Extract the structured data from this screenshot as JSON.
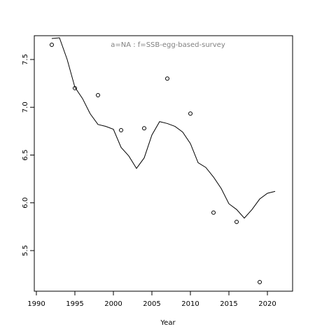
{
  "chart_data": {
    "type": "line",
    "x_label": "Year",
    "annotation": "a=NA  :  f=SSB-egg-based-survey",
    "xlim": [
      1989.73,
      2023.27
    ],
    "ylim": [
      5.075,
      7.749
    ],
    "xticks": [
      1990,
      1995,
      2000,
      2005,
      2010,
      2015,
      2020
    ],
    "yticks": [
      5.5,
      {
        "value": 6,
        "label": "6.0"
      },
      6.5,
      {
        "value": 7,
        "label": "7.0"
      },
      7.5
    ],
    "series": [
      {
        "type": "line",
        "color": "#000000",
        "x": [
          1992,
          1993,
          1994,
          1995,
          1996,
          1997,
          1998,
          1999,
          2000,
          2001,
          2002,
          2003,
          2004,
          2005,
          2006,
          2007,
          2008,
          2009,
          2010,
          2011,
          2012,
          2013,
          2014,
          2015,
          2016,
          2017,
          2018,
          2019,
          2020,
          2021
        ],
        "values": [
          7.72,
          7.727,
          7.5,
          7.21,
          7.09,
          6.93,
          6.82,
          6.8,
          6.77,
          6.58,
          6.49,
          6.36,
          6.47,
          6.71,
          6.85,
          6.83,
          6.8,
          6.74,
          6.62,
          6.42,
          6.37,
          6.27,
          6.15,
          5.99,
          5.93,
          5.84,
          5.93,
          6.04,
          6.1,
          6.12
        ]
      },
      {
        "type": "scatter",
        "color": "#000000",
        "x": [
          1992,
          1995,
          1998,
          2001,
          2004,
          2007,
          2010,
          2013,
          2016,
          2019
        ],
        "values": [
          7.654,
          7.2,
          7.126,
          6.76,
          6.78,
          7.3,
          6.934,
          5.897,
          5.8,
          5.17
        ]
      }
    ]
  }
}
